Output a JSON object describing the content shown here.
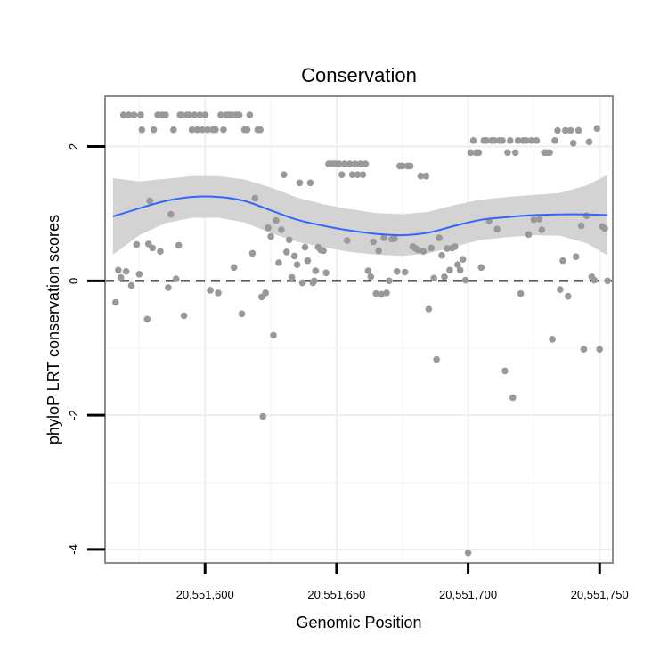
{
  "chart_data": {
    "type": "scatter",
    "title": "Conservation",
    "xlabel": "Genomic Position",
    "ylabel": "phyloP LRT conservation scores",
    "xlim": [
      20551562,
      20551755
    ],
    "ylim": [
      -4.2,
      2.75
    ],
    "x_ticks": [
      {
        "value": 20551600,
        "label": "20,551,600"
      },
      {
        "value": 20551650,
        "label": "20,551,650"
      },
      {
        "value": 20551700,
        "label": "20,551,700"
      },
      {
        "value": 20551750,
        "label": "20,551,750"
      }
    ],
    "y_ticks": [
      {
        "value": 2,
        "label": "2"
      },
      {
        "value": 0,
        "label": "0"
      },
      {
        "value": -2,
        "label": "-2"
      },
      {
        "value": -4,
        "label": "-4"
      }
    ],
    "reference_line": {
      "y": 0,
      "style": "dashed"
    },
    "colors": {
      "points": "#999999",
      "smooth": "#3366ff",
      "band": "#d3d3d3",
      "border": "#8c8c8c"
    },
    "smooth": {
      "x": [
        20551565,
        20551575,
        20551585,
        20551595,
        20551605,
        20551615,
        20551625,
        20551635,
        20551645,
        20551655,
        20551665,
        20551675,
        20551685,
        20551695,
        20551705,
        20551715,
        20551725,
        20551735,
        20551745,
        20551753
      ],
      "y": [
        0.96,
        1.08,
        1.19,
        1.25,
        1.25,
        1.19,
        1.05,
        0.91,
        0.82,
        0.75,
        0.7,
        0.68,
        0.72,
        0.82,
        0.91,
        0.95,
        0.98,
        0.99,
        0.99,
        0.98
      ],
      "upper": [
        1.53,
        1.48,
        1.52,
        1.56,
        1.56,
        1.51,
        1.39,
        1.24,
        1.14,
        1.07,
        1.01,
        0.99,
        1.03,
        1.13,
        1.21,
        1.25,
        1.28,
        1.31,
        1.42,
        1.58
      ],
      "lower": [
        0.39,
        0.68,
        0.86,
        0.94,
        0.94,
        0.87,
        0.71,
        0.58,
        0.5,
        0.43,
        0.39,
        0.37,
        0.41,
        0.51,
        0.61,
        0.65,
        0.68,
        0.67,
        0.56,
        0.38
      ]
    },
    "points": [
      [
        20551566,
        -0.32
      ],
      [
        20551567,
        0.16
      ],
      [
        20551568,
        0.05
      ],
      [
        20551569,
        2.47
      ],
      [
        20551570,
        0.14
      ],
      [
        20551571,
        2.47
      ],
      [
        20551572,
        -0.07
      ],
      [
        20551573,
        2.47
      ],
      [
        20551574,
        0.54
      ],
      [
        20551575,
        0.1
      ],
      [
        20551575.5,
        2.47
      ],
      [
        20551576,
        2.25
      ],
      [
        20551578,
        -0.57
      ],
      [
        20551578.5,
        0.55
      ],
      [
        20551579,
        1.19
      ],
      [
        20551580,
        0.49
      ],
      [
        20551580.5,
        2.25
      ],
      [
        20551582,
        2.47
      ],
      [
        20551583,
        0.44
      ],
      [
        20551583.5,
        2.47
      ],
      [
        20551584,
        2.47
      ],
      [
        20551585,
        2.47
      ],
      [
        20551586,
        -0.1
      ],
      [
        20551587,
        0.99
      ],
      [
        20551588,
        2.25
      ],
      [
        20551589,
        0.03
      ],
      [
        20551590,
        0.53
      ],
      [
        20551590.5,
        2.47
      ],
      [
        20551591,
        2.47
      ],
      [
        20551592,
        -0.52
      ],
      [
        20551593,
        2.47
      ],
      [
        20551594,
        2.47
      ],
      [
        20551595,
        2.25
      ],
      [
        20551596,
        2.47
      ],
      [
        20551597,
        2.25
      ],
      [
        20551598,
        2.47
      ],
      [
        20551599,
        2.25
      ],
      [
        20551600,
        2.47
      ],
      [
        20551601,
        2.25
      ],
      [
        20551602,
        -0.14
      ],
      [
        20551603,
        2.25
      ],
      [
        20551604,
        2.25
      ],
      [
        20551605,
        -0.18
      ],
      [
        20551606,
        2.47
      ],
      [
        20551607,
        2.25
      ],
      [
        20551608,
        2.47
      ],
      [
        20551609,
        2.47
      ],
      [
        20551610,
        2.47
      ],
      [
        20551611,
        0.2
      ],
      [
        20551611.5,
        2.47
      ],
      [
        20551612,
        2.47
      ],
      [
        20551613,
        2.47
      ],
      [
        20551614,
        -0.49
      ],
      [
        20551615,
        2.25
      ],
      [
        20551616,
        2.25
      ],
      [
        20551617,
        2.47
      ],
      [
        20551618,
        0.41
      ],
      [
        20551619,
        1.23
      ],
      [
        20551620,
        2.25
      ],
      [
        20551621,
        2.25
      ],
      [
        20551621.5,
        -0.24
      ],
      [
        20551622,
        -2.02
      ],
      [
        20551623,
        -0.18
      ],
      [
        20551624,
        0.79
      ],
      [
        20551625,
        0.66
      ],
      [
        20551626,
        -0.81
      ],
      [
        20551627,
        0.9
      ],
      [
        20551628,
        0.27
      ],
      [
        20551629,
        0.76
      ],
      [
        20551630,
        1.58
      ],
      [
        20551631,
        0.43
      ],
      [
        20551632,
        0.61
      ],
      [
        20551633,
        0.05
      ],
      [
        20551634,
        0.37
      ],
      [
        20551635,
        0.24
      ],
      [
        20551636,
        1.46
      ],
      [
        20551637,
        -0.03
      ],
      [
        20551638,
        0.5
      ],
      [
        20551639,
        0.3
      ],
      [
        20551640,
        1.46
      ],
      [
        20551641,
        -0.03
      ],
      [
        20551641.5,
        0.0
      ],
      [
        20551642,
        0.15
      ],
      [
        20551643,
        0.5
      ],
      [
        20551644,
        0.46
      ],
      [
        20551645,
        0.45
      ],
      [
        20551646,
        0.12
      ],
      [
        20551647,
        1.74
      ],
      [
        20551648,
        1.74
      ],
      [
        20551649,
        1.74
      ],
      [
        20551650,
        1.74
      ],
      [
        20551651,
        1.74
      ],
      [
        20551652,
        1.58
      ],
      [
        20551653,
        1.74
      ],
      [
        20551654,
        0.6
      ],
      [
        20551655,
        1.74
      ],
      [
        20551656,
        1.58
      ],
      [
        20551657,
        1.74
      ],
      [
        20551658,
        1.58
      ],
      [
        20551659,
        1.74
      ],
      [
        20551660,
        1.58
      ],
      [
        20551661,
        1.74
      ],
      [
        20551662,
        0.15
      ],
      [
        20551663,
        0.06
      ],
      [
        20551664,
        0.58
      ],
      [
        20551665,
        -0.19
      ],
      [
        20551666,
        0.45
      ],
      [
        20551667,
        -0.2
      ],
      [
        20551668,
        0.64
      ],
      [
        20551669,
        -0.18
      ],
      [
        20551670,
        0.0
      ],
      [
        20551671,
        0.62
      ],
      [
        20551672,
        0.63
      ],
      [
        20551673,
        0.14
      ],
      [
        20551674,
        1.71
      ],
      [
        20551675,
        1.71
      ],
      [
        20551676,
        0.13
      ],
      [
        20551677,
        1.71
      ],
      [
        20551678,
        1.71
      ],
      [
        20551679,
        0.51
      ],
      [
        20551680,
        0.48
      ],
      [
        20551681,
        0.46
      ],
      [
        20551682,
        1.56
      ],
      [
        20551683,
        0.44
      ],
      [
        20551684,
        1.56
      ],
      [
        20551685,
        -0.42
      ],
      [
        20551686,
        0.49
      ],
      [
        20551687,
        0.04
      ],
      [
        20551688,
        -1.17
      ],
      [
        20551689,
        0.64
      ],
      [
        20551690,
        0.38
      ],
      [
        20551691,
        0.06
      ],
      [
        20551692,
        0.48
      ],
      [
        20551693,
        0.16
      ],
      [
        20551694,
        0.49
      ],
      [
        20551695,
        0.51
      ],
      [
        20551696,
        0.24
      ],
      [
        20551697,
        0.16
      ],
      [
        20551698,
        0.32
      ],
      [
        20551699,
        0.01
      ],
      [
        20551700,
        -4.05
      ],
      [
        20551701,
        1.91
      ],
      [
        20551702,
        2.09
      ],
      [
        20551703,
        1.91
      ],
      [
        20551704,
        1.91
      ],
      [
        20551705,
        0.2
      ],
      [
        20551706,
        2.09
      ],
      [
        20551707,
        2.09
      ],
      [
        20551708,
        0.89
      ],
      [
        20551709,
        2.09
      ],
      [
        20551710,
        2.09
      ],
      [
        20551711,
        0.77
      ],
      [
        20551712,
        2.09
      ],
      [
        20551713,
        2.09
      ],
      [
        20551714,
        -1.34
      ],
      [
        20551715,
        1.91
      ],
      [
        20551716,
        2.09
      ],
      [
        20551717,
        -1.74
      ],
      [
        20551718,
        1.91
      ],
      [
        20551719,
        2.09
      ],
      [
        20551720,
        -0.19
      ],
      [
        20551721,
        2.09
      ],
      [
        20551722,
        2.09
      ],
      [
        20551723,
        0.69
      ],
      [
        20551724,
        2.09
      ],
      [
        20551725,
        0.91
      ],
      [
        20551726,
        2.09
      ],
      [
        20551727,
        0.92
      ],
      [
        20551728,
        0.76
      ],
      [
        20551729,
        1.91
      ],
      [
        20551730,
        1.91
      ],
      [
        20551731,
        1.91
      ],
      [
        20551732,
        -0.87
      ],
      [
        20551733,
        2.09
      ],
      [
        20551734,
        2.24
      ],
      [
        20551735,
        -0.13
      ],
      [
        20551736,
        0.3
      ],
      [
        20551737,
        2.24
      ],
      [
        20551738,
        -0.23
      ],
      [
        20551739,
        2.24
      ],
      [
        20551740,
        2.05
      ],
      [
        20551741,
        0.36
      ],
      [
        20551742,
        2.24
      ],
      [
        20551743,
        0.82
      ],
      [
        20551744,
        -1.02
      ],
      [
        20551745,
        0.97
      ],
      [
        20551746,
        2.07
      ],
      [
        20551747,
        0.06
      ],
      [
        20551748,
        0.01
      ],
      [
        20551749,
        2.27
      ],
      [
        20551750,
        -1.02
      ],
      [
        20551751,
        0.81
      ],
      [
        20551752,
        0.78
      ],
      [
        20551753,
        0.0
      ]
    ]
  }
}
